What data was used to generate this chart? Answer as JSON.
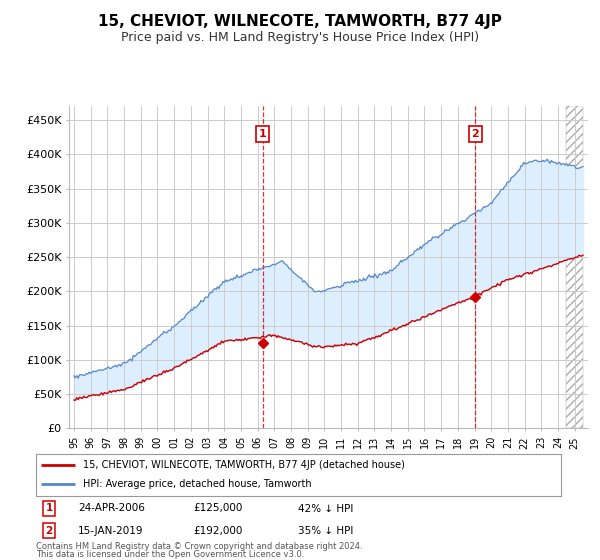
{
  "title": "15, CHEVIOT, WILNECOTE, TAMWORTH, B77 4JP",
  "subtitle": "Price paid vs. HM Land Registry's House Price Index (HPI)",
  "title_fontsize": 11,
  "subtitle_fontsize": 9,
  "bg_color": "#ffffff",
  "plot_bg_color": "#ffffff",
  "grid_color": "#cccccc",
  "hpi_color": "#5588cc",
  "hpi_fill_color": "#ddeeff",
  "price_color": "#cc0000",
  "vline_color": "#cc0000",
  "annotation_box_color": "#cc0000",
  "ylim": [
    0,
    470000
  ],
  "yticks": [
    0,
    50000,
    100000,
    150000,
    200000,
    250000,
    300000,
    350000,
    400000,
    450000
  ],
  "ytick_labels": [
    "£0",
    "£50K",
    "£100K",
    "£150K",
    "£200K",
    "£250K",
    "£300K",
    "£350K",
    "£400K",
    "£450K"
  ],
  "sale1_date": "24-APR-2006",
  "sale1_price": 125000,
  "sale1_label": "1",
  "sale1_year": 2006.3,
  "sale2_date": "15-JAN-2019",
  "sale2_price": 192000,
  "sale2_label": "2",
  "sale2_year": 2019.05,
  "legend_line1": "15, CHEVIOT, WILNECOTE, TAMWORTH, B77 4JP (detached house)",
  "legend_line2": "HPI: Average price, detached house, Tamworth",
  "footer1": "Contains HM Land Registry data © Crown copyright and database right 2024.",
  "footer2": "This data is licensed under the Open Government Licence v3.0."
}
